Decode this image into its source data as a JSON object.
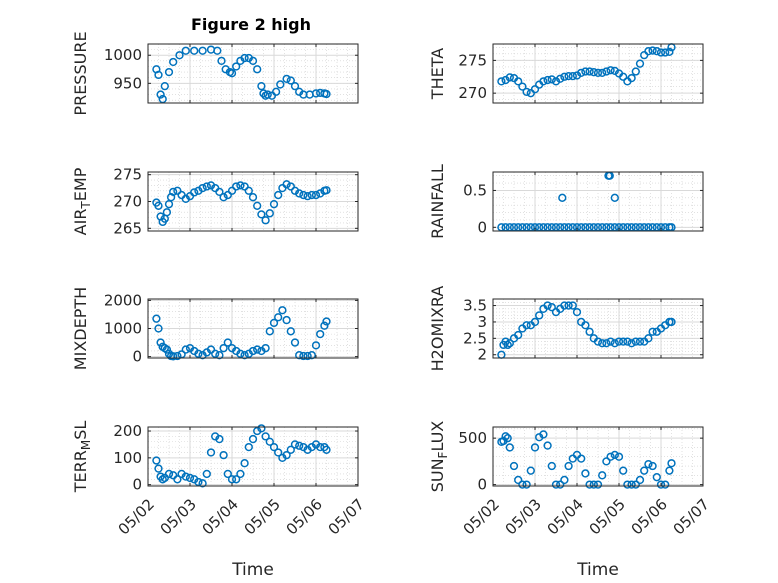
{
  "figure": {
    "title": "Figure 2 high"
  },
  "chart_data": [
    {
      "type": "scatter",
      "title": "Figure 2 high",
      "ylabel": "PRESSURE",
      "xlabel": "",
      "ylim": [
        915,
        1020
      ],
      "yticks": [
        950,
        1000
      ],
      "xlim": [
        "05/02",
        "05/07"
      ],
      "xticks": [
        "05/02",
        "05/03",
        "05/04",
        "05/05",
        "05/06",
        "05/07"
      ],
      "grid": true,
      "series": [
        {
          "x": [
            2.2,
            2.25,
            2.3,
            2.35,
            2.4,
            2.5,
            2.6,
            2.75,
            2.9,
            3.1,
            3.3,
            3.5,
            3.65,
            3.75,
            3.85,
            3.95,
            4.0,
            4.1,
            4.2,
            4.3,
            4.4,
            4.5,
            4.6,
            4.7,
            4.75,
            4.8,
            4.85,
            4.95,
            5.05,
            5.15,
            5.3,
            5.4,
            5.5,
            5.6,
            5.7,
            5.85,
            6.0,
            6.1,
            6.2,
            6.25
          ],
          "y": [
            975,
            965,
            930,
            922,
            945,
            970,
            988,
            1000,
            1008,
            1008,
            1008,
            1010,
            1008,
            990,
            975,
            970,
            968,
            980,
            990,
            995,
            995,
            990,
            975,
            945,
            932,
            928,
            930,
            928,
            935,
            948,
            958,
            955,
            945,
            935,
            930,
            930,
            932,
            933,
            932,
            931
          ]
        }
      ]
    },
    {
      "type": "scatter",
      "ylabel": "THETA",
      "xlabel": "",
      "ylim": [
        268.5,
        277.5
      ],
      "yticks": [
        270,
        275
      ],
      "xlim": [
        "05/02",
        "05/07"
      ],
      "xticks": [
        "05/02",
        "05/03",
        "05/04",
        "05/05",
        "05/06",
        "05/07"
      ],
      "grid": true,
      "series": [
        {
          "x": [
            2.2,
            2.3,
            2.4,
            2.5,
            2.6,
            2.7,
            2.8,
            2.9,
            3.0,
            3.1,
            3.2,
            3.3,
            3.4,
            3.5,
            3.6,
            3.7,
            3.8,
            3.9,
            4.0,
            4.1,
            4.2,
            4.3,
            4.4,
            4.5,
            4.6,
            4.7,
            4.8,
            4.9,
            5.0,
            5.1,
            5.2,
            5.3,
            5.4,
            5.5,
            5.6,
            5.7,
            5.8,
            5.9,
            6.0,
            6.1,
            6.2,
            6.25
          ],
          "y": [
            271.8,
            272.0,
            272.4,
            272.3,
            271.8,
            271.0,
            270.2,
            270.0,
            270.6,
            271.3,
            271.8,
            272.0,
            272.1,
            271.8,
            272.2,
            272.5,
            272.6,
            272.6,
            272.7,
            273.1,
            273.3,
            273.3,
            273.2,
            273.1,
            273.1,
            273.3,
            273.5,
            273.4,
            273.0,
            272.5,
            271.8,
            272.3,
            273.3,
            274.5,
            275.8,
            276.4,
            276.5,
            276.4,
            276.2,
            276.2,
            276.3,
            277.0
          ]
        }
      ]
    },
    {
      "type": "scatter",
      "ylabel": "AIR_TEMP",
      "xlabel": "",
      "ylim": [
        264.5,
        275.5
      ],
      "yticks": [
        265,
        270,
        275
      ],
      "xlim": [
        "05/02",
        "05/07"
      ],
      "xticks": [
        "05/02",
        "05/03",
        "05/04",
        "05/05",
        "05/06",
        "05/07"
      ],
      "grid": true,
      "series": [
        {
          "x": [
            2.2,
            2.25,
            2.3,
            2.35,
            2.4,
            2.45,
            2.5,
            2.55,
            2.6,
            2.7,
            2.8,
            2.9,
            3.0,
            3.1,
            3.2,
            3.3,
            3.4,
            3.5,
            3.6,
            3.7,
            3.8,
            3.9,
            4.0,
            4.1,
            4.2,
            4.3,
            4.4,
            4.5,
            4.6,
            4.7,
            4.8,
            4.9,
            5.0,
            5.1,
            5.2,
            5.3,
            5.4,
            5.5,
            5.6,
            5.7,
            5.8,
            5.9,
            6.0,
            6.1,
            6.2,
            6.25
          ],
          "y": [
            269.8,
            269.2,
            267.2,
            266.2,
            266.8,
            268.0,
            269.5,
            270.8,
            271.8,
            272.0,
            271.2,
            270.5,
            271.0,
            271.7,
            272.0,
            272.5,
            272.8,
            273.0,
            272.5,
            271.8,
            270.8,
            271.2,
            272.0,
            272.8,
            273.0,
            272.8,
            272.0,
            270.8,
            269.2,
            267.6,
            266.5,
            267.8,
            269.5,
            271.2,
            272.5,
            273.2,
            272.8,
            272.0,
            271.5,
            271.2,
            271.0,
            271.2,
            271.2,
            271.5,
            272.0,
            272.1
          ]
        }
      ]
    },
    {
      "type": "scatter",
      "ylabel": "RAINFALL",
      "xlabel": "",
      "ylim": [
        -0.05,
        0.75
      ],
      "yticks": [
        0,
        0.5
      ],
      "xlim": [
        "05/02",
        "05/07"
      ],
      "xticks": [
        "05/02",
        "05/03",
        "05/04",
        "05/05",
        "05/06",
        "05/07"
      ],
      "grid": true,
      "series": [
        {
          "x": [
            2.2,
            2.3,
            2.4,
            2.5,
            2.6,
            2.7,
            2.8,
            2.9,
            3.0,
            3.1,
            3.2,
            3.3,
            3.4,
            3.5,
            3.6,
            3.7,
            3.8,
            3.9,
            4.0,
            4.1,
            4.2,
            4.3,
            4.4,
            4.5,
            4.6,
            4.7,
            4.8,
            4.9,
            5.0,
            5.1,
            5.2,
            5.3,
            5.4,
            5.5,
            5.6,
            5.7,
            5.8,
            5.9,
            6.0,
            6.1,
            6.2,
            6.25,
            3.65,
            4.75,
            4.78,
            4.9
          ],
          "y": [
            0,
            0,
            0,
            0,
            0,
            0,
            0,
            0,
            0,
            0,
            0,
            0,
            0,
            0,
            0,
            0,
            0,
            0,
            0,
            0,
            0,
            0,
            0,
            0,
            0,
            0,
            0,
            0,
            0,
            0,
            0,
            0,
            0,
            0,
            0,
            0,
            0,
            0,
            0,
            0,
            0,
            0,
            0.4,
            0.7,
            0.7,
            0.4
          ]
        }
      ]
    },
    {
      "type": "scatter",
      "ylabel": "MIXDEPTH",
      "xlabel": "",
      "ylim": [
        -50,
        2050
      ],
      "yticks": [
        0,
        1000,
        2000
      ],
      "xlim": [
        "05/02",
        "05/07"
      ],
      "xticks": [
        "05/02",
        "05/03",
        "05/04",
        "05/05",
        "05/06",
        "05/07"
      ],
      "grid": true,
      "series": [
        {
          "x": [
            2.2,
            2.25,
            2.3,
            2.35,
            2.4,
            2.45,
            2.5,
            2.55,
            2.6,
            2.7,
            2.8,
            2.9,
            3.0,
            3.1,
            3.2,
            3.3,
            3.4,
            3.5,
            3.6,
            3.7,
            3.8,
            3.9,
            4.0,
            4.1,
            4.2,
            4.3,
            4.4,
            4.5,
            4.6,
            4.7,
            4.8,
            4.9,
            5.0,
            5.1,
            5.2,
            5.3,
            5.4,
            5.5,
            5.6,
            5.7,
            5.8,
            5.9,
            6.0,
            6.1,
            6.2,
            6.25
          ],
          "y": [
            1350,
            1000,
            500,
            350,
            300,
            250,
            100,
            20,
            10,
            20,
            80,
            250,
            300,
            200,
            100,
            50,
            150,
            250,
            100,
            50,
            300,
            500,
            300,
            200,
            100,
            50,
            100,
            200,
            250,
            200,
            300,
            900,
            1200,
            1400,
            1650,
            1300,
            900,
            500,
            50,
            20,
            20,
            50,
            400,
            800,
            1100,
            1250
          ]
        }
      ]
    },
    {
      "type": "scatter",
      "ylabel": "H2OMIXRA",
      "xlabel": "",
      "ylim": [
        1.9,
        3.7
      ],
      "yticks": [
        2,
        2.5,
        3,
        3.5
      ],
      "xlim": [
        "05/02",
        "05/07"
      ],
      "xticks": [
        "05/02",
        "05/03",
        "05/04",
        "05/05",
        "05/06",
        "05/07"
      ],
      "grid": true,
      "series": [
        {
          "x": [
            2.2,
            2.25,
            2.3,
            2.35,
            2.4,
            2.5,
            2.6,
            2.7,
            2.8,
            2.9,
            3.0,
            3.1,
            3.2,
            3.3,
            3.4,
            3.5,
            3.6,
            3.7,
            3.8,
            3.9,
            4.0,
            4.1,
            4.2,
            4.3,
            4.4,
            4.5,
            4.6,
            4.7,
            4.8,
            4.9,
            5.0,
            5.1,
            5.2,
            5.3,
            5.4,
            5.5,
            5.6,
            5.7,
            5.8,
            5.9,
            6.0,
            6.1,
            6.2,
            6.25
          ],
          "y": [
            2.0,
            2.3,
            2.4,
            2.3,
            2.35,
            2.5,
            2.6,
            2.8,
            2.9,
            2.9,
            3.0,
            3.2,
            3.4,
            3.5,
            3.45,
            3.3,
            3.4,
            3.5,
            3.5,
            3.5,
            3.3,
            3.0,
            2.9,
            2.7,
            2.5,
            2.4,
            2.35,
            2.35,
            2.4,
            2.35,
            2.4,
            2.4,
            2.4,
            2.35,
            2.4,
            2.4,
            2.4,
            2.5,
            2.7,
            2.7,
            2.8,
            2.9,
            3.0,
            3.0
          ]
        }
      ]
    },
    {
      "type": "scatter",
      "ylabel": "TERR_MSL",
      "xlabel": "Time",
      "ylim": [
        -5,
        215
      ],
      "yticks": [
        0,
        100,
        200
      ],
      "xlim": [
        "05/02",
        "05/07"
      ],
      "xticks": [
        "05/02",
        "05/03",
        "05/04",
        "05/05",
        "05/06",
        "05/07"
      ],
      "grid": true,
      "series": [
        {
          "x": [
            2.2,
            2.25,
            2.3,
            2.35,
            2.4,
            2.5,
            2.6,
            2.7,
            2.8,
            2.9,
            3.0,
            3.1,
            3.2,
            3.3,
            3.4,
            3.5,
            3.6,
            3.7,
            3.8,
            3.9,
            4.0,
            4.1,
            4.2,
            4.3,
            4.4,
            4.5,
            4.6,
            4.7,
            4.8,
            4.9,
            5.0,
            5.1,
            5.2,
            5.3,
            5.4,
            5.5,
            5.6,
            5.7,
            5.8,
            5.9,
            6.0,
            6.1,
            6.2,
            6.25
          ],
          "y": [
            90,
            60,
            30,
            20,
            25,
            40,
            35,
            20,
            40,
            30,
            25,
            20,
            10,
            5,
            40,
            120,
            180,
            170,
            110,
            40,
            20,
            20,
            40,
            80,
            140,
            170,
            200,
            210,
            180,
            160,
            140,
            120,
            100,
            110,
            130,
            150,
            145,
            140,
            130,
            140,
            150,
            140,
            140,
            130
          ]
        }
      ]
    },
    {
      "type": "scatter",
      "ylabel": "SUN_FLUX",
      "xlabel": "Time",
      "ylim": [
        -15,
        620
      ],
      "yticks": [
        0,
        500
      ],
      "xlim": [
        "05/02",
        "05/07"
      ],
      "xticks": [
        "05/02",
        "05/03",
        "05/04",
        "05/05",
        "05/06",
        "05/07"
      ],
      "grid": true,
      "series": [
        {
          "x": [
            2.2,
            2.25,
            2.3,
            2.35,
            2.4,
            2.5,
            2.6,
            2.7,
            2.8,
            2.9,
            3.0,
            3.1,
            3.2,
            3.3,
            3.4,
            3.5,
            3.6,
            3.7,
            3.8,
            3.9,
            4.0,
            4.1,
            4.2,
            4.3,
            4.4,
            4.5,
            4.6,
            4.7,
            4.8,
            4.9,
            5.0,
            5.1,
            5.2,
            5.3,
            5.4,
            5.5,
            5.6,
            5.7,
            5.8,
            5.9,
            6.0,
            6.1,
            6.2,
            6.25
          ],
          "y": [
            460,
            470,
            520,
            500,
            400,
            200,
            50,
            0,
            0,
            150,
            400,
            510,
            540,
            420,
            200,
            0,
            0,
            50,
            200,
            280,
            320,
            280,
            120,
            0,
            0,
            0,
            100,
            250,
            300,
            320,
            300,
            150,
            0,
            0,
            0,
            50,
            150,
            220,
            200,
            80,
            0,
            0,
            150,
            230
          ]
        }
      ]
    }
  ]
}
